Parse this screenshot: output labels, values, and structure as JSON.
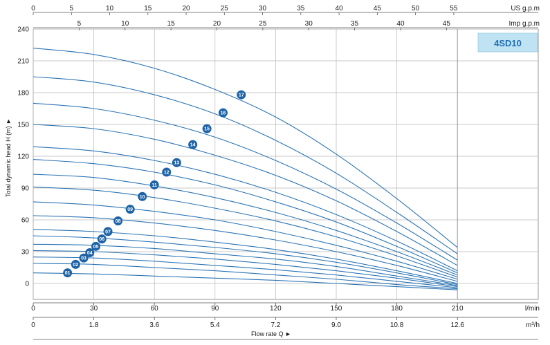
{
  "chart_data": {
    "type": "line",
    "model": "4SD10",
    "ylabel": "Total dynamic head H (m) ►",
    "xlabel": "Flow rate Q ►",
    "ylim": [
      -15,
      240
    ],
    "xlim": [
      0,
      250
    ],
    "grid": true,
    "y_ticks": [
      "0",
      "30",
      "60",
      "90",
      "120",
      "150",
      "180",
      "210",
      "240"
    ],
    "x_axes": {
      "usgpm": {
        "unit": "US g.p.m",
        "ticks": [
          "0",
          "5",
          "10",
          "15",
          "20",
          "25",
          "30",
          "35",
          "40",
          "45",
          "50",
          "55"
        ]
      },
      "impgpm": {
        "unit": "Imp g.p.m",
        "ticks": [
          "5",
          "10",
          "15",
          "20",
          "25",
          "30",
          "35",
          "40",
          "45"
        ]
      },
      "lmin": {
        "unit": "l/min",
        "ticks": [
          "0",
          "30",
          "60",
          "90",
          "120",
          "150",
          "180",
          "210"
        ]
      },
      "m3h": {
        "unit": "m³/h",
        "ticks": [
          "0",
          "1.8",
          "3.6",
          "5.4",
          "7.2",
          "9.0",
          "10.8",
          "12.6"
        ]
      }
    },
    "series": [
      {
        "name": "01",
        "values": [
          [
            0,
            10
          ],
          [
            30,
            9
          ],
          [
            60,
            7
          ],
          [
            90,
            5
          ],
          [
            120,
            3
          ],
          [
            150,
            0
          ],
          [
            180,
            -3
          ],
          [
            210,
            -6
          ]
        ]
      },
      {
        "name": "02",
        "values": [
          [
            0,
            19
          ],
          [
            30,
            18
          ],
          [
            60,
            15
          ],
          [
            90,
            12
          ],
          [
            120,
            8
          ],
          [
            150,
            4
          ],
          [
            180,
            -1
          ],
          [
            210,
            -5
          ]
        ]
      },
      {
        "name": "03",
        "values": [
          [
            0,
            25
          ],
          [
            30,
            24
          ],
          [
            60,
            21
          ],
          [
            90,
            17
          ],
          [
            120,
            13
          ],
          [
            150,
            8
          ],
          [
            180,
            2
          ],
          [
            210,
            -4
          ]
        ]
      },
      {
        "name": "04",
        "values": [
          [
            0,
            31
          ],
          [
            30,
            30
          ],
          [
            60,
            27
          ],
          [
            90,
            23
          ],
          [
            120,
            18
          ],
          [
            150,
            12
          ],
          [
            180,
            5
          ],
          [
            210,
            -3
          ]
        ]
      },
      {
        "name": "05",
        "values": [
          [
            0,
            37
          ],
          [
            30,
            36
          ],
          [
            60,
            33
          ],
          [
            90,
            28
          ],
          [
            120,
            23
          ],
          [
            150,
            16
          ],
          [
            180,
            7
          ],
          [
            210,
            -2
          ]
        ]
      },
      {
        "name": "06",
        "values": [
          [
            0,
            45
          ],
          [
            30,
            43
          ],
          [
            60,
            39
          ],
          [
            90,
            34
          ],
          [
            120,
            28
          ],
          [
            150,
            20
          ],
          [
            180,
            10
          ],
          [
            210,
            -1
          ]
        ]
      },
      {
        "name": "07",
        "values": [
          [
            0,
            51
          ],
          [
            30,
            49
          ],
          [
            60,
            45
          ],
          [
            90,
            39
          ],
          [
            120,
            32
          ],
          [
            150,
            23
          ],
          [
            180,
            12
          ],
          [
            210,
            0
          ]
        ]
      },
      {
        "name": "08",
        "values": [
          [
            0,
            64
          ],
          [
            30,
            62
          ],
          [
            60,
            57
          ],
          [
            90,
            50
          ],
          [
            120,
            41
          ],
          [
            150,
            30
          ],
          [
            180,
            17
          ],
          [
            210,
            2
          ]
        ]
      },
      {
        "name": "09",
        "values": [
          [
            0,
            77
          ],
          [
            30,
            74
          ],
          [
            60,
            68
          ],
          [
            90,
            60
          ],
          [
            120,
            49
          ],
          [
            150,
            36
          ],
          [
            180,
            21
          ],
          [
            210,
            4
          ]
        ]
      },
      {
        "name": "10",
        "values": [
          [
            0,
            91
          ],
          [
            30,
            88
          ],
          [
            60,
            81
          ],
          [
            90,
            71
          ],
          [
            120,
            59
          ],
          [
            150,
            44
          ],
          [
            180,
            26
          ],
          [
            210,
            6
          ]
        ]
      },
      {
        "name": "11",
        "values": [
          [
            0,
            103
          ],
          [
            30,
            100
          ],
          [
            60,
            92
          ],
          [
            90,
            81
          ],
          [
            120,
            67
          ],
          [
            150,
            50
          ],
          [
            180,
            30
          ],
          [
            210,
            8
          ]
        ]
      },
      {
        "name": "12",
        "values": [
          [
            0,
            117
          ],
          [
            30,
            113
          ],
          [
            60,
            105
          ],
          [
            90,
            93
          ],
          [
            120,
            77
          ],
          [
            150,
            58
          ],
          [
            180,
            35
          ],
          [
            210,
            10
          ]
        ]
      },
      {
        "name": "13",
        "values": [
          [
            0,
            129
          ],
          [
            30,
            125
          ],
          [
            60,
            116
          ],
          [
            90,
            103
          ],
          [
            120,
            86
          ],
          [
            150,
            65
          ],
          [
            180,
            40
          ],
          [
            210,
            12
          ]
        ]
      },
      {
        "name": "14",
        "values": [
          [
            0,
            150
          ],
          [
            30,
            146
          ],
          [
            60,
            136
          ],
          [
            90,
            121
          ],
          [
            120,
            102
          ],
          [
            150,
            78
          ],
          [
            180,
            49
          ],
          [
            210,
            17
          ]
        ]
      },
      {
        "name": "15",
        "values": [
          [
            0,
            170
          ],
          [
            30,
            165
          ],
          [
            60,
            154
          ],
          [
            90,
            138
          ],
          [
            120,
            116
          ],
          [
            150,
            89
          ],
          [
            180,
            57
          ],
          [
            210,
            22
          ]
        ]
      },
      {
        "name": "16",
        "values": [
          [
            0,
            195
          ],
          [
            30,
            190
          ],
          [
            60,
            178
          ],
          [
            90,
            160
          ],
          [
            120,
            135
          ],
          [
            150,
            104
          ],
          [
            180,
            67
          ],
          [
            210,
            28
          ]
        ]
      },
      {
        "name": "17",
        "values": [
          [
            0,
            222
          ],
          [
            30,
            216
          ],
          [
            60,
            203
          ],
          [
            90,
            183
          ],
          [
            120,
            157
          ],
          [
            150,
            122
          ],
          [
            180,
            80
          ],
          [
            210,
            34
          ]
        ]
      }
    ],
    "curve_labels": [
      {
        "name": "01",
        "x": 17,
        "y": 10
      },
      {
        "name": "02",
        "x": 21,
        "y": 18
      },
      {
        "name": "03",
        "x": 25,
        "y": 24
      },
      {
        "name": "04",
        "x": 28,
        "y": 29
      },
      {
        "name": "05",
        "x": 31,
        "y": 35
      },
      {
        "name": "06",
        "x": 34,
        "y": 42
      },
      {
        "name": "07",
        "x": 37,
        "y": 49
      },
      {
        "name": "08",
        "x": 42,
        "y": 59
      },
      {
        "name": "09",
        "x": 48,
        "y": 70
      },
      {
        "name": "10",
        "x": 54,
        "y": 82
      },
      {
        "name": "11",
        "x": 60,
        "y": 93
      },
      {
        "name": "12",
        "x": 66,
        "y": 105
      },
      {
        "name": "13",
        "x": 71,
        "y": 114
      },
      {
        "name": "14",
        "x": 79,
        "y": 131
      },
      {
        "name": "15",
        "x": 86,
        "y": 146
      },
      {
        "name": "16",
        "x": 94,
        "y": 161
      },
      {
        "name": "17",
        "x": 103,
        "y": 178
      }
    ],
    "colors": {
      "curve": "#2b74b4",
      "marker": "#1d63a6",
      "grid": "#b8b8b8",
      "model_box": "#bfe3f3",
      "model_text": "#1f6fb5"
    }
  }
}
